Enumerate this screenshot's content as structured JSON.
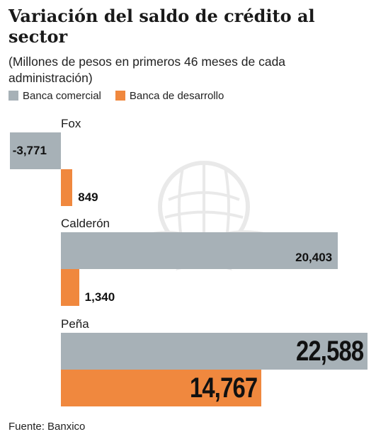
{
  "title": "Variación del saldo de crédito al sector",
  "subtitle": "(Millones de pesos en primeros 46 meses de cada administración)",
  "source": "Fuente: Banxico",
  "colors": {
    "comercial": "#a7b1b7",
    "desarrollo": "#f0883e"
  },
  "chart_data": {
    "type": "bar",
    "orientation": "horizontal",
    "title": "Variación del saldo de crédito al sector",
    "subtitle": "(Millones de pesos en primeros 46 meses de cada administración)",
    "categories": [
      "Fox",
      "Calderón",
      "Peña"
    ],
    "series": [
      {
        "name": "Banca comercial",
        "values": [
          -3771,
          20403,
          22588
        ]
      },
      {
        "name": "Banca de desarrollo",
        "values": [
          849,
          1340,
          14767
        ]
      }
    ],
    "value_labels": [
      [
        "-3,771",
        "20,403",
        "22,588"
      ],
      [
        "849",
        "1,340",
        "14,767"
      ]
    ],
    "legend": "top-left",
    "grid": false
  }
}
